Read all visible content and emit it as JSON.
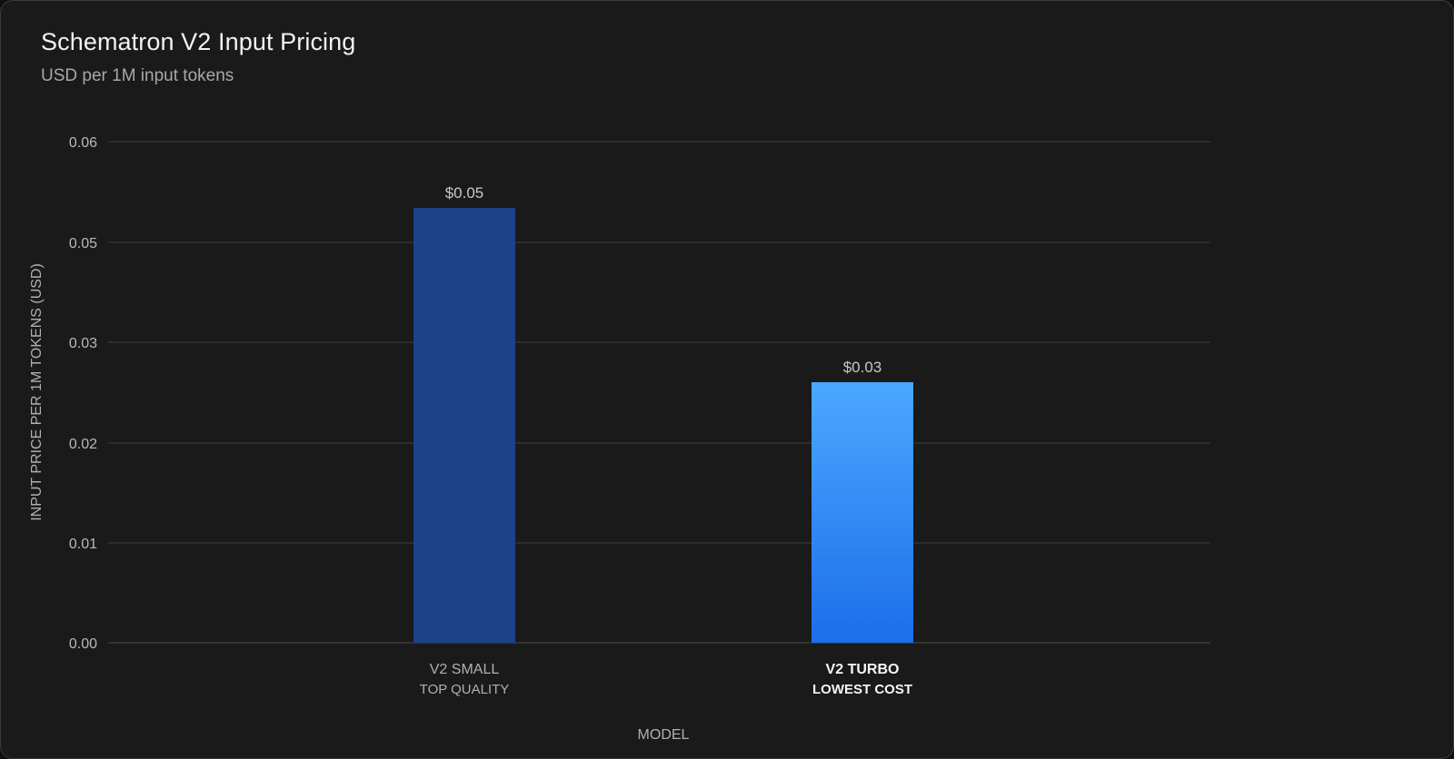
{
  "colors": {
    "background": "#1a1a1a",
    "grid": "#3e3e3e",
    "bar_small": "#1c4289",
    "bar_turbo_top": "#4ba8ff",
    "bar_turbo_bottom": "#1c6eea"
  },
  "chart_data": {
    "type": "bar",
    "title": "Schematron V2 Input Pricing",
    "subtitle": "USD per 1M input tokens",
    "xlabel": "MODEL",
    "ylabel": "INPUT PRICE PER 1M TOKENS (USD)",
    "ylim": [
      0,
      0.06
    ],
    "y_ticks": [
      0.0,
      0.01,
      0.02,
      0.03,
      0.05,
      0.06
    ],
    "y_tick_labels": [
      "0.00",
      "0.01",
      "0.02",
      "0.03",
      "0.05",
      "0.06"
    ],
    "grid": true,
    "legend": "none",
    "categories": [
      "V2 SMALL",
      "V2 TURBO"
    ],
    "category_sublabels": [
      "TOP QUALITY",
      "LOWEST COST"
    ],
    "values": [
      0.05,
      0.03
    ],
    "value_labels": [
      "$0.05",
      "$0.03"
    ],
    "highlighted_category": "V2 TURBO"
  }
}
